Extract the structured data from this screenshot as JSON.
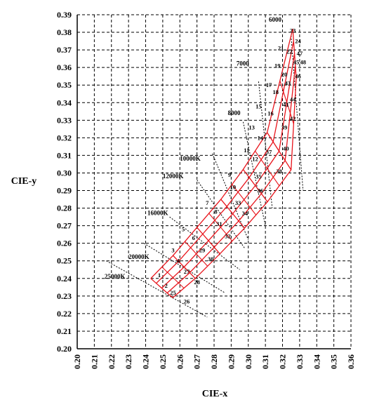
{
  "chart_data": {
    "type": "scatter",
    "title": "",
    "xlabel": "CIE-x",
    "ylabel": "CIE-y",
    "xlim": [
      0.2,
      0.36
    ],
    "ylim": [
      0.2,
      0.39
    ],
    "xticks": [
      "0.20",
      "0.21",
      "0.22",
      "0.23",
      "0.24",
      "0.25",
      "0.26",
      "0.27",
      "0.28",
      "0.29",
      "0.30",
      "0.31",
      "0.32",
      "0.33",
      "0.34",
      "0.35",
      "0.36"
    ],
    "yticks": [
      "0.20",
      "0.21",
      "0.22",
      "0.23",
      "0.24",
      "0.25",
      "0.26",
      "0.27",
      "0.28",
      "0.29",
      "0.30",
      "0.31",
      "0.32",
      "0.33",
      "0.34",
      "0.35",
      "0.36",
      "0.37",
      "0.38",
      "0.39"
    ],
    "grid": true,
    "grid_style": "dashed",
    "grid_color": "#000000",
    "bin_color": "#e8141b",
    "isotherm_color": "#000000",
    "bin_grid": {
      "rows": [
        {
          "x": 0.243,
          "y": 0.24
        },
        {
          "x": 0.256,
          "y": 0.253
        },
        {
          "x": 0.27,
          "y": 0.269
        },
        {
          "x": 0.284,
          "y": 0.285
        },
        {
          "x": 0.297,
          "y": 0.302
        },
        {
          "x": 0.311,
          "y": 0.323
        },
        {
          "x": 0.326,
          "y": 0.382
        }
      ],
      "row_step_x": [
        0.0064,
        0.0065,
        0.0067,
        0.0069,
        0.0071,
        0.007,
        0.001
      ],
      "row_step_y": [
        -0.0055,
        -0.0065,
        -0.0075,
        -0.0082,
        -0.0092,
        -0.0106,
        -0.014
      ],
      "columns": 5,
      "intermediate_rows": 1
    },
    "cct_lines": [
      {
        "label": "25000K",
        "x1": 0.217,
        "y1": 0.25,
        "x2": 0.276,
        "y2": 0.218,
        "lx": 0.216,
        "ly": 0.24
      },
      {
        "label": "20000K",
        "x1": 0.239,
        "y1": 0.26,
        "x2": 0.286,
        "y2": 0.232,
        "lx": 0.23,
        "ly": 0.251
      },
      {
        "label": "16000K",
        "x1": 0.254,
        "y1": 0.275,
        "x2": 0.295,
        "y2": 0.245,
        "lx": 0.241,
        "ly": 0.276
      },
      {
        "label": "12000K",
        "x1": 0.27,
        "y1": 0.296,
        "x2": 0.298,
        "y2": 0.257,
        "lx": 0.25,
        "ly": 0.297
      },
      {
        "label": "10000K",
        "x1": 0.279,
        "y1": 0.311,
        "x2": 0.3,
        "y2": 0.262,
        "lx": 0.26,
        "ly": 0.307
      },
      {
        "label": "8000",
        "x1": 0.297,
        "y1": 0.329,
        "x2": 0.31,
        "y2": 0.27,
        "lx": 0.288,
        "ly": 0.333
      },
      {
        "label": "7000",
        "x1": 0.306,
        "y1": 0.352,
        "x2": 0.314,
        "y2": 0.28,
        "lx": 0.293,
        "ly": 0.361
      },
      {
        "label": "6000",
        "x1": 0.325,
        "y1": 0.378,
        "x2": 0.332,
        "y2": 0.29,
        "lx": 0.312,
        "ly": 0.386
      }
    ],
    "bins": [
      {
        "label": "1",
        "x": 0.248,
        "y": 0.242
      },
      {
        "label": "2",
        "x": 0.252,
        "y": 0.236
      },
      {
        "label": "25",
        "x": 0.256,
        "y": 0.232
      },
      {
        "label": "26",
        "x": 0.264,
        "y": 0.227
      },
      {
        "label": "4",
        "x": 0.259,
        "y": 0.25
      },
      {
        "label": "3",
        "x": 0.256,
        "y": 0.256
      },
      {
        "label": "27",
        "x": 0.264,
        "y": 0.244
      },
      {
        "label": "28",
        "x": 0.27,
        "y": 0.238
      },
      {
        "label": "6",
        "x": 0.268,
        "y": 0.263
      },
      {
        "label": "5",
        "x": 0.262,
        "y": 0.268
      },
      {
        "label": "29",
        "x": 0.273,
        "y": 0.256
      },
      {
        "label": "30",
        "x": 0.278,
        "y": 0.251
      },
      {
        "label": "8",
        "x": 0.281,
        "y": 0.278
      },
      {
        "label": "7",
        "x": 0.276,
        "y": 0.283
      },
      {
        "label": "31",
        "x": 0.283,
        "y": 0.271
      },
      {
        "label": "32",
        "x": 0.288,
        "y": 0.264
      },
      {
        "label": "10",
        "x": 0.291,
        "y": 0.292
      },
      {
        "label": "9",
        "x": 0.289,
        "y": 0.299
      },
      {
        "label": "33",
        "x": 0.294,
        "y": 0.283
      },
      {
        "label": "34",
        "x": 0.298,
        "y": 0.277
      },
      {
        "label": "12",
        "x": 0.304,
        "y": 0.308
      },
      {
        "label": "11",
        "x": 0.299,
        "y": 0.313
      },
      {
        "label": "35",
        "x": 0.306,
        "y": 0.298
      },
      {
        "label": "36",
        "x": 0.307,
        "y": 0.29
      },
      {
        "label": "14",
        "x": 0.307,
        "y": 0.32
      },
      {
        "label": "13",
        "x": 0.302,
        "y": 0.326
      },
      {
        "label": "37",
        "x": 0.312,
        "y": 0.312
      },
      {
        "label": "38",
        "x": 0.318,
        "y": 0.301
      },
      {
        "label": "16",
        "x": 0.313,
        "y": 0.334
      },
      {
        "label": "15",
        "x": 0.306,
        "y": 0.338
      },
      {
        "label": "39",
        "x": 0.321,
        "y": 0.326
      },
      {
        "label": "40",
        "x": 0.322,
        "y": 0.314
      },
      {
        "label": "18",
        "x": 0.316,
        "y": 0.346
      },
      {
        "label": "17",
        "x": 0.312,
        "y": 0.35
      },
      {
        "label": "41",
        "x": 0.322,
        "y": 0.339
      },
      {
        "label": "42",
        "x": 0.326,
        "y": 0.331
      },
      {
        "label": "20",
        "x": 0.321,
        "y": 0.356
      },
      {
        "label": "19",
        "x": 0.317,
        "y": 0.361
      },
      {
        "label": "43",
        "x": 0.323,
        "y": 0.351
      },
      {
        "label": "44",
        "x": 0.326,
        "y": 0.342
      },
      {
        "label": "22",
        "x": 0.324,
        "y": 0.369
      },
      {
        "label": "21",
        "x": 0.319,
        "y": 0.371
      },
      {
        "label": "45",
        "x": 0.328,
        "y": 0.363
      },
      {
        "label": "46",
        "x": 0.329,
        "y": 0.355
      },
      {
        "label": "24",
        "x": 0.329,
        "y": 0.375
      },
      {
        "label": "23",
        "x": 0.326,
        "y": 0.381
      },
      {
        "label": "47",
        "x": 0.33,
        "y": 0.368
      },
      {
        "label": "48",
        "x": 0.332,
        "y": 0.363
      }
    ]
  }
}
